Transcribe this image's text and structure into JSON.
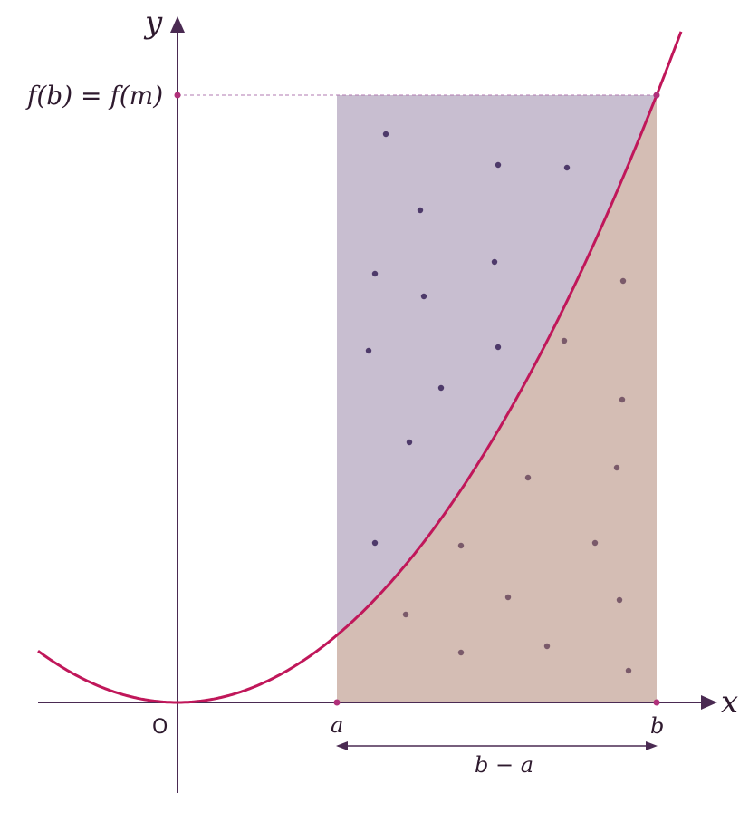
{
  "labels": {
    "y_axis": "y",
    "x_axis": "x",
    "origin": "O",
    "a": "a",
    "b": "b",
    "fb_fm": "f(b) = f(m)",
    "width": "b − a"
  },
  "colors": {
    "axis": "#4a2a52",
    "curve": "#c0175a",
    "upper_region": "#c8bed0",
    "lower_region": "#d4bdb4",
    "dot_upper": "#4e3a6a",
    "dot_lower": "#7a5a6a",
    "marker": "#b0307a",
    "guide": "#b07ab0"
  },
  "dots_upper": [
    [
      426,
      148
    ],
    [
      550,
      182
    ],
    [
      626,
      185
    ],
    [
      464,
      232
    ],
    [
      414,
      302
    ],
    [
      546,
      289
    ],
    [
      468,
      327
    ],
    [
      407,
      387
    ],
    [
      550,
      383
    ],
    [
      487,
      428
    ],
    [
      452,
      488
    ],
    [
      414,
      599
    ]
  ],
  "dots_lower": [
    [
      688,
      310
    ],
    [
      623,
      376
    ],
    [
      687,
      441
    ],
    [
      583,
      527
    ],
    [
      681,
      516
    ],
    [
      509,
      602
    ],
    [
      657,
      599
    ],
    [
      561,
      659
    ],
    [
      684,
      662
    ],
    [
      448,
      678
    ],
    [
      509,
      720
    ],
    [
      604,
      713
    ],
    [
      694,
      740
    ]
  ]
}
